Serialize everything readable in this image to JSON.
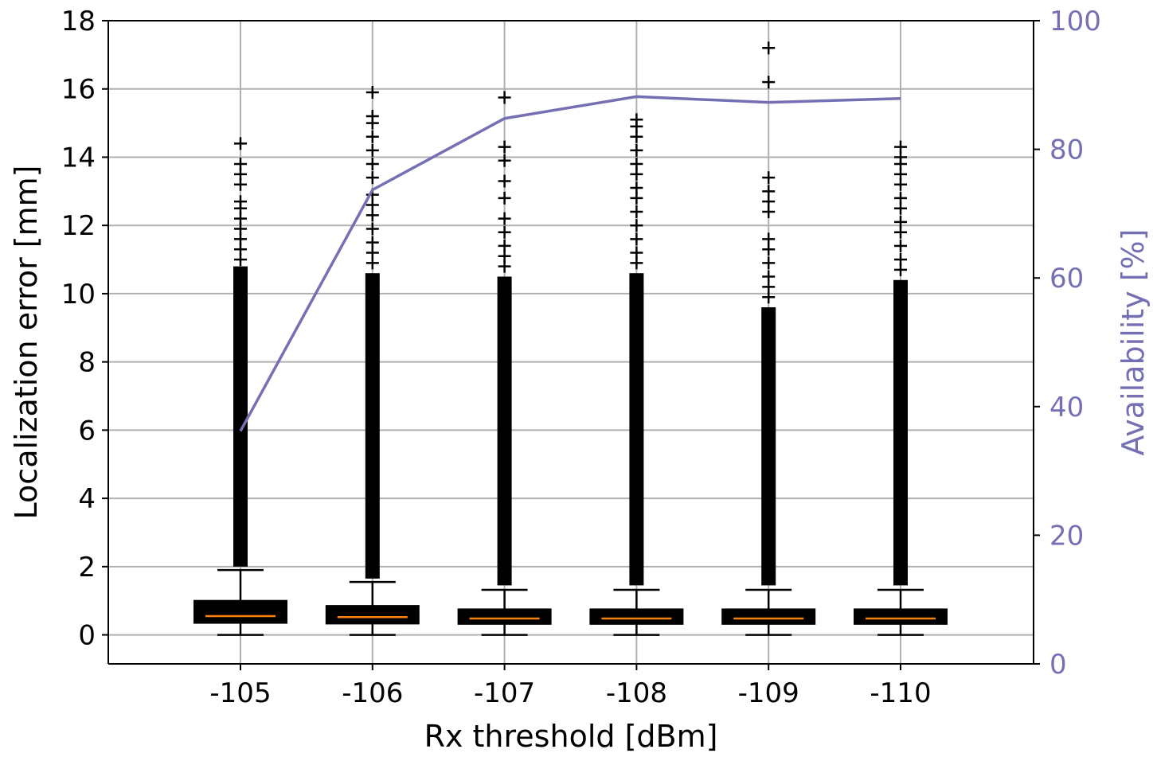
{
  "chart_data": {
    "type": "box",
    "xlabel": "Rx threshold [dBm]",
    "ylabel_left": "Localization error [mm]",
    "ylabel_right": "Availability [%]",
    "categories": [
      "-105",
      "-106",
      "-107",
      "-108",
      "-109",
      "-110"
    ],
    "ylim_left": [
      -0.85,
      18
    ],
    "ylim_right": [
      0,
      100
    ],
    "yticks_left": [
      "0",
      "2",
      "4",
      "6",
      "8",
      "10",
      "12",
      "14",
      "16",
      "18"
    ],
    "yticks_right": [
      "0",
      "20",
      "40",
      "60",
      "80",
      "100"
    ],
    "grid": true,
    "colors": {
      "box": "#000000",
      "median": "#ff7f0e",
      "availability_line": "#7570b3",
      "grid": "#b0b0b0"
    },
    "boxes": [
      {
        "category": "-105",
        "whisker_low": 0.0,
        "q1": 0.35,
        "median": 0.55,
        "q3": 1.0,
        "whisker_high": 1.9,
        "outlier_dense_from": 2.0,
        "outlier_dense_to": 10.8,
        "outliers_sparse": [
          11.0,
          11.3,
          11.6,
          11.9,
          12.2,
          12.5,
          12.7,
          13.2,
          13.5,
          13.8,
          14.4
        ]
      },
      {
        "category": "-106",
        "whisker_low": 0.0,
        "q1": 0.33,
        "median": 0.52,
        "q3": 0.85,
        "whisker_high": 1.55,
        "outlier_dense_from": 1.65,
        "outlier_dense_to": 10.6,
        "outliers_sparse": [
          10.9,
          11.2,
          11.5,
          11.9,
          12.3,
          12.6,
          12.9,
          13.4,
          13.8,
          14.2,
          14.6,
          15.0,
          15.2,
          15.9
        ]
      },
      {
        "category": "-107",
        "whisker_low": 0.0,
        "q1": 0.32,
        "median": 0.48,
        "q3": 0.75,
        "whisker_high": 1.32,
        "outlier_dense_from": 1.45,
        "outlier_dense_to": 10.5,
        "outliers_sparse": [
          10.8,
          11.1,
          11.4,
          11.8,
          12.2,
          12.8,
          13.3,
          13.9,
          14.3,
          15.75
        ]
      },
      {
        "category": "-108",
        "whisker_low": 0.0,
        "q1": 0.32,
        "median": 0.48,
        "q3": 0.75,
        "whisker_high": 1.32,
        "outlier_dense_from": 1.45,
        "outlier_dense_to": 10.6,
        "outliers_sparse": [
          10.9,
          11.2,
          11.6,
          12.0,
          12.4,
          12.8,
          13.1,
          13.5,
          13.8,
          14.2,
          14.6,
          14.9,
          15.1
        ]
      },
      {
        "category": "-109",
        "whisker_low": 0.0,
        "q1": 0.32,
        "median": 0.48,
        "q3": 0.75,
        "whisker_high": 1.32,
        "outlier_dense_from": 1.45,
        "outlier_dense_to": 9.6,
        "outliers_sparse": [
          9.9,
          10.2,
          10.5,
          10.9,
          11.3,
          11.6,
          12.4,
          12.7,
          13.0,
          13.4,
          16.2,
          17.2
        ]
      },
      {
        "category": "-110",
        "whisker_low": 0.0,
        "q1": 0.32,
        "median": 0.48,
        "q3": 0.75,
        "whisker_high": 1.32,
        "outlier_dense_from": 1.45,
        "outlier_dense_to": 10.4,
        "outliers_sparse": [
          10.7,
          11.0,
          11.4,
          11.8,
          12.1,
          12.5,
          12.8,
          13.2,
          13.5,
          13.8,
          14.0,
          14.3
        ]
      }
    ],
    "availability": {
      "name": "",
      "x": [
        "-105",
        "-106",
        "-107",
        "-108",
        "-109",
        "-110"
      ],
      "values": [
        36.2,
        73.7,
        84.8,
        88.2,
        87.3,
        87.9
      ]
    }
  }
}
